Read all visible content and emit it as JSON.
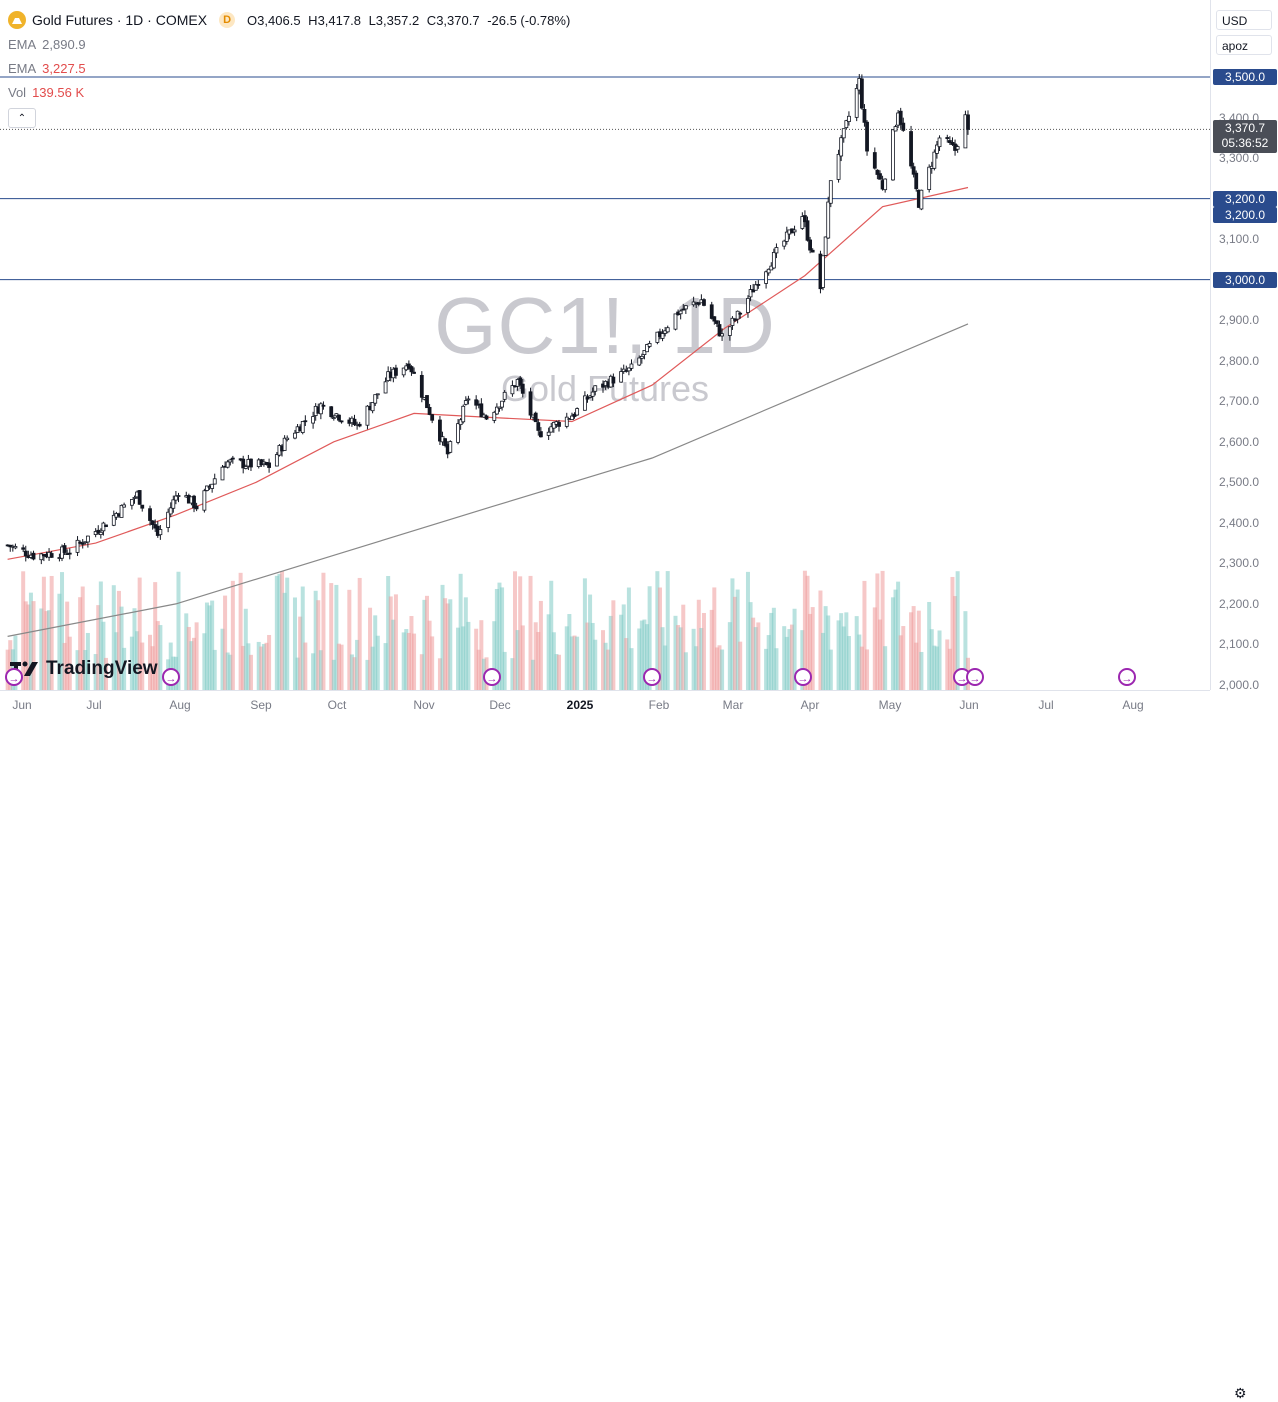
{
  "header": {
    "symbol_title": "Gold Futures · 1D · COMEX",
    "interval_badge": "D",
    "ohlc": {
      "open_label": "O",
      "open": "3,406.5",
      "high_label": "H",
      "high": "3,417.8",
      "low_label": "L",
      "low": "3,357.2",
      "close_label": "C",
      "close": "3,370.7",
      "change": "-26.5 (-0.78%)"
    }
  },
  "indicators": [
    {
      "name": "EMA",
      "value": "2,890.9",
      "color": "#787b86"
    },
    {
      "name": "EMA",
      "value": "3,227.5",
      "color": "#e24c4c"
    },
    {
      "name": "Vol",
      "value": "139.56 K",
      "color": "#e24c4c"
    }
  ],
  "watermark": {
    "symbol": "GC1!, 1D",
    "name": "Gold Futures"
  },
  "controls": {
    "currency": "USD",
    "scale_mode": "apoz"
  },
  "price_axis": {
    "ticks": [
      "3,400.0",
      "3,300.0",
      "3,100.0",
      "2,900.0",
      "2,800.0",
      "2,700.0",
      "2,600.0",
      "2,500.0",
      "2,400.0",
      "2,300.0",
      "2,200.0",
      "2,100.0",
      "2,000.0"
    ],
    "horizontal_lines": [
      {
        "label": "3,500.0",
        "value": 3500
      },
      {
        "label": "3,200.0",
        "value": 3200
      },
      {
        "label": "3,000.0",
        "value": 3000
      }
    ],
    "line_color": "#2a4b8d",
    "last_price": "3,370.7",
    "countdown": "05:36:52",
    "ema_tag": "3,200.0"
  },
  "time_axis": {
    "labels": [
      {
        "text": "Jun",
        "bold": false
      },
      {
        "text": "Jul",
        "bold": false
      },
      {
        "text": "Aug",
        "bold": false
      },
      {
        "text": "Sep",
        "bold": false
      },
      {
        "text": "Oct",
        "bold": false
      },
      {
        "text": "Nov",
        "bold": false
      },
      {
        "text": "Dec",
        "bold": false
      },
      {
        "text": "2025",
        "bold": true
      },
      {
        "text": "Feb",
        "bold": false
      },
      {
        "text": "Mar",
        "bold": false
      },
      {
        "text": "Apr",
        "bold": false
      },
      {
        "text": "May",
        "bold": false
      },
      {
        "text": "Jun",
        "bold": false
      },
      {
        "text": "Jul",
        "bold": false
      },
      {
        "text": "Aug",
        "bold": false
      }
    ]
  },
  "branding": {
    "logo_text": "TradingView"
  },
  "colors": {
    "up": "#ffffff",
    "down": "#131722",
    "ema_fast": "#e05a5a",
    "ema_slow": "#888888",
    "vol_up": "#80cbc4",
    "vol_down": "#ef9a9a"
  },
  "chart_data": {
    "type": "candlestick",
    "title": "Gold Futures · 1D · COMEX",
    "ylim": [
      2000,
      3500
    ],
    "price_key_points": [
      [
        "2024-05-28",
        2345
      ],
      [
        "2024-06-07",
        2320
      ],
      [
        "2024-06-21",
        2330
      ],
      [
        "2024-07-05",
        2400
      ],
      [
        "2024-07-17",
        2470
      ],
      [
        "2024-07-25",
        2370
      ],
      [
        "2024-08-02",
        2480
      ],
      [
        "2024-08-09",
        2440
      ],
      [
        "2024-08-20",
        2550
      ],
      [
        "2024-09-06",
        2540
      ],
      [
        "2024-09-13",
        2610
      ],
      [
        "2024-09-26",
        2690
      ],
      [
        "2024-10-10",
        2640
      ],
      [
        "2024-10-22",
        2760
      ],
      [
        "2024-10-30",
        2795
      ],
      [
        "2024-11-14",
        2570
      ],
      [
        "2024-11-22",
        2710
      ],
      [
        "2024-11-29",
        2660
      ],
      [
        "2024-12-11",
        2750
      ],
      [
        "2024-12-19",
        2620
      ],
      [
        "2025-01-02",
        2670
      ],
      [
        "2025-01-10",
        2730
      ],
      [
        "2025-01-24",
        2780
      ],
      [
        "2025-02-11",
        2920
      ],
      [
        "2025-02-20",
        2950
      ],
      [
        "2025-02-28",
        2860
      ],
      [
        "2025-03-07",
        2920
      ],
      [
        "2025-03-14",
        3000
      ],
      [
        "2025-03-31",
        3160
      ],
      [
        "2025-04-07",
        2980
      ],
      [
        "2025-04-11",
        3250
      ],
      [
        "2025-04-22",
        3490
      ],
      [
        "2025-04-25",
        3320
      ],
      [
        "2025-05-01",
        3230
      ],
      [
        "2025-05-07",
        3420
      ],
      [
        "2025-05-15",
        3190
      ],
      [
        "2025-05-23",
        3350
      ],
      [
        "2025-05-29",
        3320
      ],
      [
        "2025-06-02",
        3400
      ],
      [
        "2025-06-03",
        3370.7
      ]
    ],
    "ema_fast_points": [
      [
        "2024-05-28",
        2310
      ],
      [
        "2024-07-01",
        2350
      ],
      [
        "2024-08-01",
        2420
      ],
      [
        "2024-09-01",
        2500
      ],
      [
        "2024-10-01",
        2600
      ],
      [
        "2024-11-01",
        2670
      ],
      [
        "2024-12-01",
        2660
      ],
      [
        "2025-01-01",
        2650
      ],
      [
        "2025-02-01",
        2740
      ],
      [
        "2025-03-01",
        2880
      ],
      [
        "2025-04-01",
        3010
      ],
      [
        "2025-05-01",
        3180
      ],
      [
        "2025-06-03",
        3227.5
      ]
    ],
    "ema_slow_points": [
      [
        "2024-05-28",
        2120
      ],
      [
        "2024-08-01",
        2200
      ],
      [
        "2024-10-01",
        2320
      ],
      [
        "2024-12-01",
        2440
      ],
      [
        "2025-02-01",
        2560
      ],
      [
        "2025-04-01",
        2720
      ],
      [
        "2025-06-03",
        2890.9
      ]
    ],
    "volume_last": "139.56 K"
  }
}
